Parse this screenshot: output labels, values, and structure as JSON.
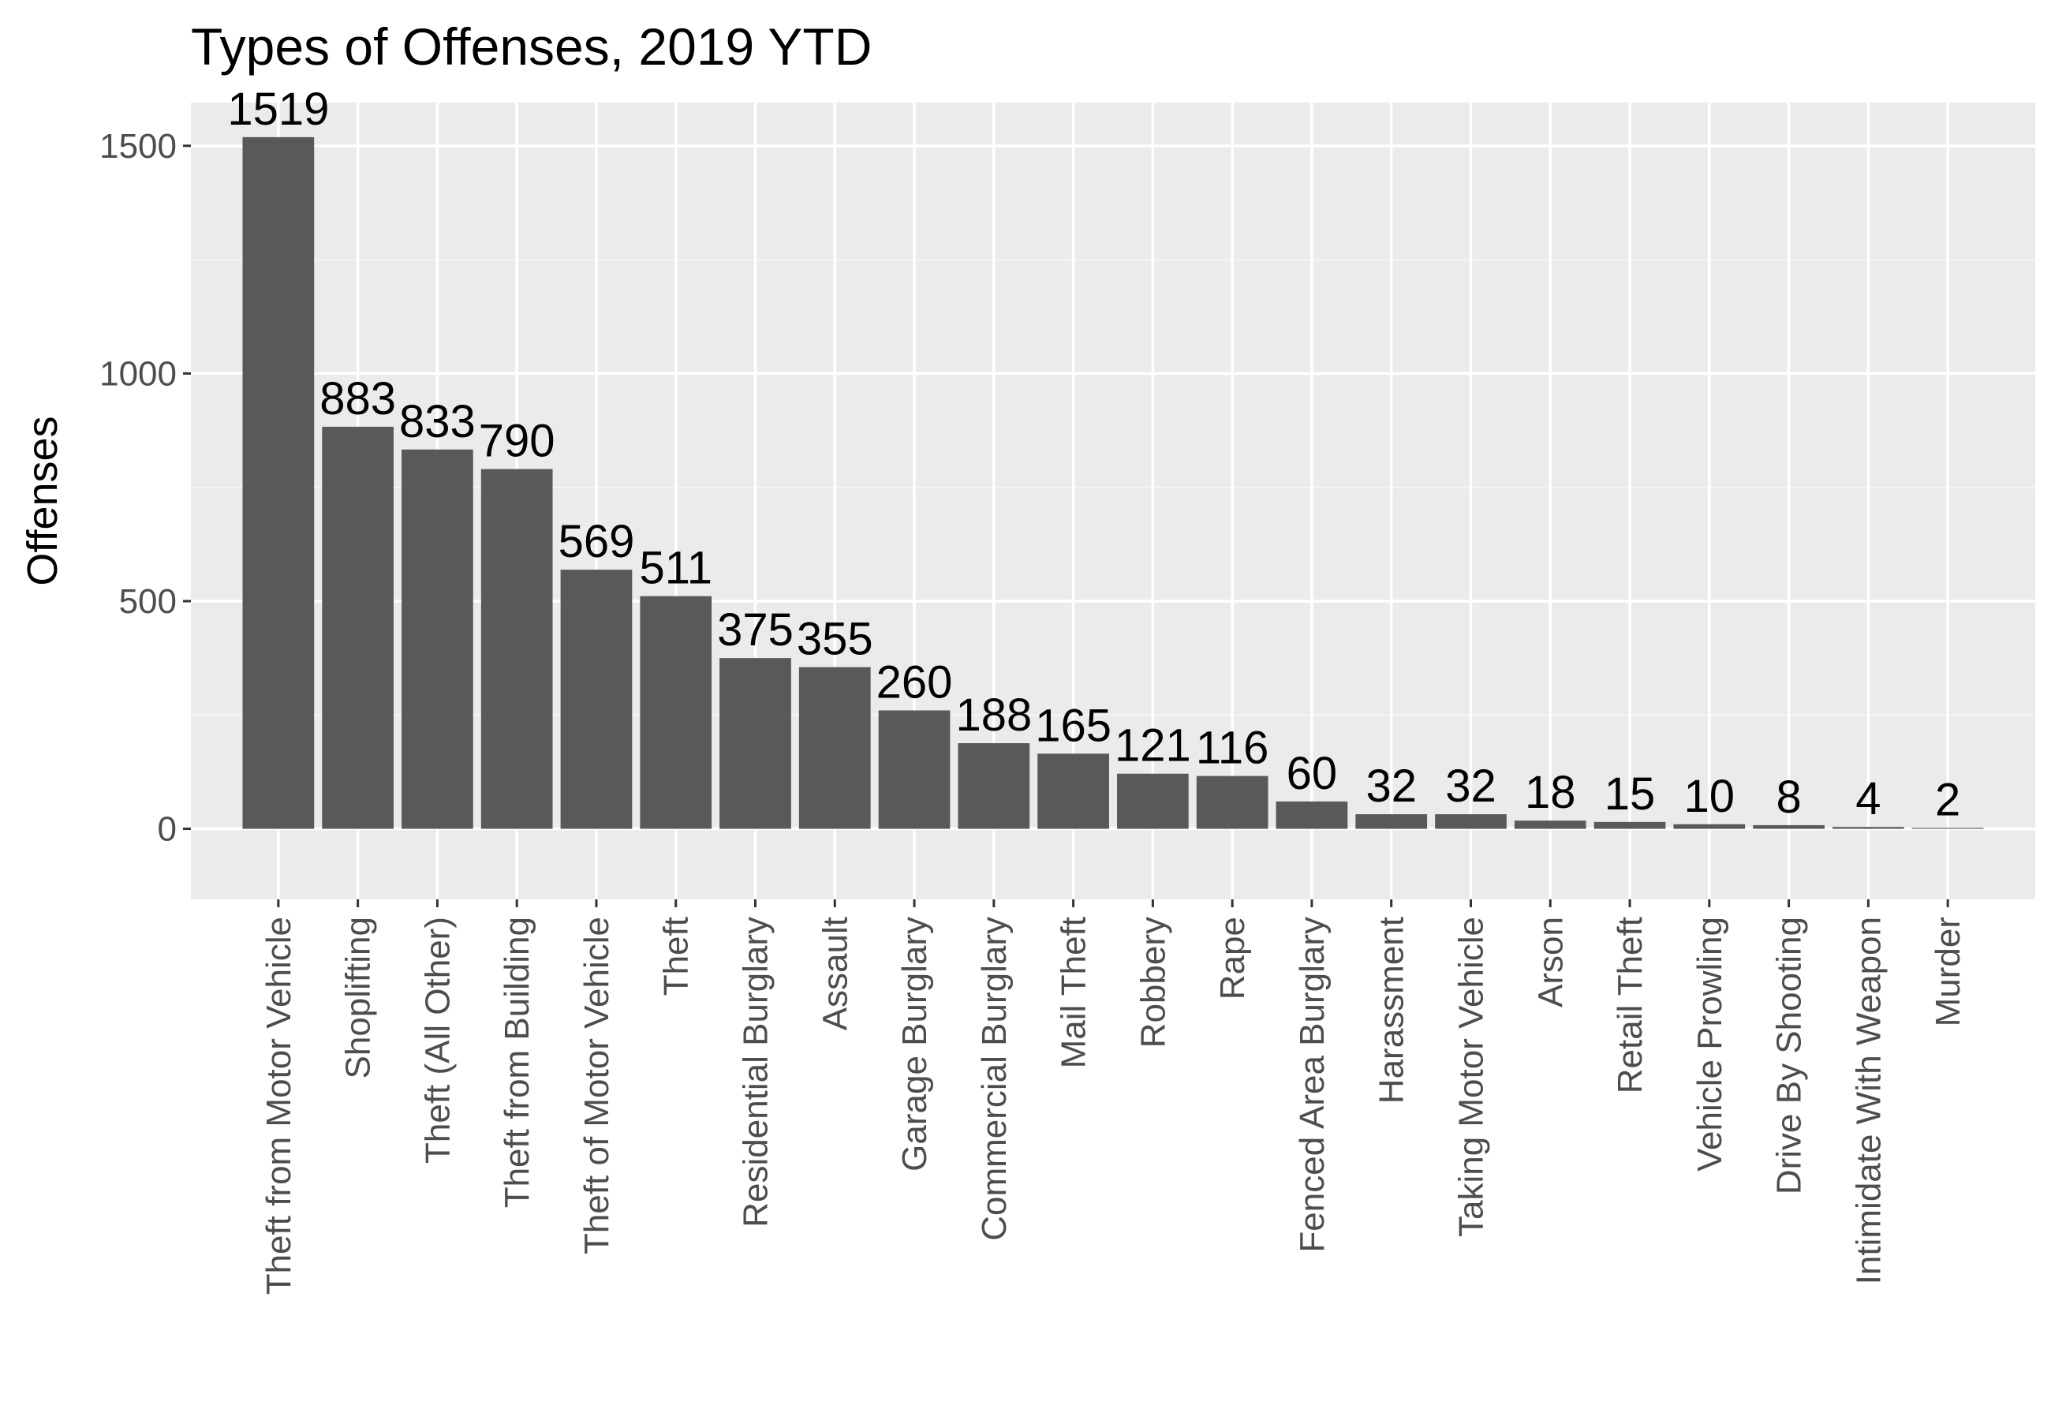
{
  "chart_data": {
    "type": "bar",
    "title": "Types of Offenses, 2019 YTD",
    "xlabel": "",
    "ylabel": "Offenses",
    "ylim": [
      -155,
      1595
    ],
    "yticks": [
      0,
      500,
      1000,
      1500
    ],
    "grid": true,
    "legend": "none",
    "colors": {
      "panel": "#ebebeb",
      "bar": "#595959",
      "grid_major": "#ffffff",
      "grid_minor": "#f5f5f5",
      "tick_text": "#4d4d4d",
      "tick_mark": "#333333"
    },
    "categories": [
      "Theft from Motor Vehicle",
      "Shoplifting",
      "Theft (All Other)",
      "Theft from Building",
      "Theft of Motor Vehicle",
      "Theft",
      "Residential Burglary",
      "Assault",
      "Garage Burglary",
      "Commercial Burglary",
      "Mail Theft",
      "Robbery",
      "Rape",
      "Fenced Area Burglary",
      "Harassment",
      "Taking Motor Vehicle",
      "Arson",
      "Retail Theft",
      "Vehicle Prowling",
      "Drive By Shooting",
      "Intimidate With Weapon",
      "Murder"
    ],
    "values": [
      1519,
      883,
      833,
      790,
      569,
      511,
      375,
      355,
      260,
      188,
      165,
      121,
      116,
      60,
      32,
      32,
      18,
      15,
      10,
      8,
      4,
      2
    ]
  }
}
